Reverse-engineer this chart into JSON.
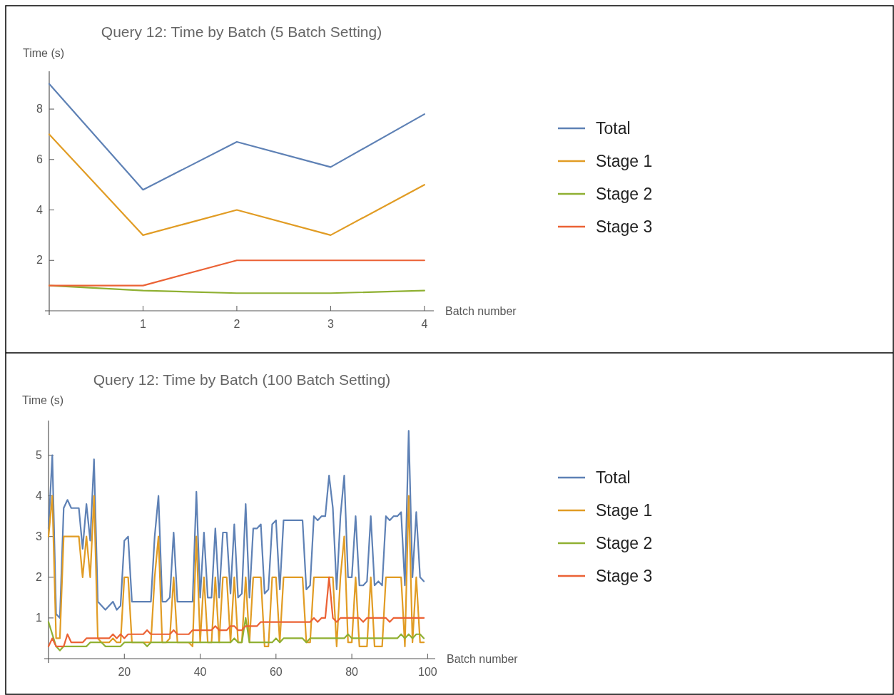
{
  "chart_data": [
    {
      "type": "line",
      "title": "Query 12: Time by Batch (5 Batch Setting)",
      "xlabel": "Batch number",
      "ylabel": "Time (s)",
      "x": [
        0,
        1,
        2,
        3,
        4
      ],
      "xlim": [
        0,
        4.1
      ],
      "ylim": [
        0,
        9.5
      ],
      "xticks": [
        1,
        2,
        3,
        4
      ],
      "yticks": [
        2,
        4,
        6,
        8
      ],
      "legend": "right",
      "grid": false,
      "series": [
        {
          "name": "Total",
          "color": "#5e81b5",
          "values": [
            9,
            4.8,
            6.7,
            5.7,
            7.8
          ]
        },
        {
          "name": "Stage 1",
          "color": "#e19c24",
          "values": [
            7,
            3,
            4,
            3,
            5
          ]
        },
        {
          "name": "Stage 2",
          "color": "#8fb032",
          "values": [
            1,
            0.8,
            0.7,
            0.7,
            0.8
          ]
        },
        {
          "name": "Stage 3",
          "color": "#eb6235",
          "values": [
            1,
            1,
            2,
            2,
            2
          ]
        }
      ]
    },
    {
      "type": "line",
      "title": "Query 12: Time by Batch (100 Batch Setting)",
      "xlabel": "Batch number",
      "ylabel": "Time (s)",
      "x": [
        0,
        1,
        2,
        3,
        4,
        5,
        6,
        7,
        8,
        9,
        10,
        11,
        12,
        13,
        14,
        15,
        16,
        17,
        18,
        19,
        20,
        21,
        22,
        23,
        24,
        25,
        26,
        27,
        28,
        29,
        30,
        31,
        32,
        33,
        34,
        35,
        36,
        37,
        38,
        39,
        40,
        41,
        42,
        43,
        44,
        45,
        46,
        47,
        48,
        49,
        50,
        51,
        52,
        53,
        54,
        55,
        56,
        57,
        58,
        59,
        60,
        61,
        62,
        63,
        64,
        65,
        66,
        67,
        68,
        69,
        70,
        71,
        72,
        73,
        74,
        75,
        76,
        77,
        78,
        79,
        80,
        81,
        82,
        83,
        84,
        85,
        86,
        87,
        88,
        89,
        90,
        91,
        92,
        93,
        94,
        95,
        96,
        97,
        98,
        99
      ],
      "xlim": [
        0,
        102
      ],
      "ylim": [
        0,
        5.85
      ],
      "xticks": [
        20,
        40,
        60,
        80,
        100
      ],
      "yticks": [
        1,
        2,
        3,
        4,
        5
      ],
      "legend": "right",
      "grid": false,
      "series": [
        {
          "name": "Total",
          "color": "#5e81b5",
          "values": [
            3.2,
            5.0,
            1.1,
            1.0,
            3.7,
            3.9,
            3.7,
            3.7,
            3.7,
            2.7,
            3.8,
            2.9,
            4.9,
            1.4,
            1.3,
            1.2,
            1.3,
            1.4,
            1.2,
            1.3,
            2.9,
            3.0,
            1.4,
            1.4,
            1.4,
            1.4,
            1.4,
            1.4,
            3.0,
            4.0,
            1.4,
            1.4,
            1.5,
            3.1,
            1.4,
            1.4,
            1.4,
            1.4,
            1.4,
            4.1,
            1.5,
            3.1,
            1.5,
            1.5,
            3.2,
            1.5,
            3.1,
            3.1,
            1.6,
            3.3,
            1.5,
            1.6,
            3.8,
            1.5,
            3.2,
            3.2,
            3.3,
            1.6,
            1.7,
            3.3,
            3.4,
            1.7,
            3.4,
            3.4,
            3.4,
            3.4,
            3.4,
            3.4,
            1.7,
            1.8,
            3.5,
            3.4,
            3.5,
            3.5,
            4.5,
            3.7,
            1.7,
            3.5,
            4.5,
            2.0,
            2.0,
            3.5,
            1.8,
            1.8,
            1.9,
            3.5,
            1.8,
            1.9,
            1.8,
            3.5,
            3.4,
            3.5,
            3.5,
            3.6,
            1.8,
            5.6,
            2.0,
            3.6,
            2.0,
            1.9
          ]
        },
        {
          "name": "Stage 1",
          "color": "#e19c24",
          "values": [
            3,
            4,
            0.5,
            0.5,
            3,
            3,
            3,
            3,
            3,
            2,
            3,
            2,
            4,
            0.5,
            0.4,
            0.4,
            0.4,
            0.5,
            0.4,
            0.4,
            2,
            2,
            0.4,
            0.4,
            0.4,
            0.4,
            0.4,
            0.4,
            2,
            3,
            0.4,
            0.4,
            0.5,
            2,
            0.4,
            0.4,
            0.4,
            0.4,
            0.3,
            3,
            0.4,
            2,
            0.4,
            0.4,
            2,
            0.4,
            2,
            2,
            0.4,
            2,
            0.4,
            0.4,
            2,
            0.4,
            2,
            2,
            2,
            0.3,
            0.3,
            2,
            2,
            0.4,
            2,
            2,
            2,
            2,
            2,
            2,
            0.4,
            0.4,
            2,
            2,
            2,
            2,
            2,
            2,
            0.3,
            2,
            3,
            0.4,
            0.4,
            2,
            0.3,
            0.3,
            0.3,
            2,
            0.3,
            0.3,
            0.3,
            2,
            2,
            2,
            2,
            2,
            0.3,
            4,
            0.4,
            2,
            0.4,
            0.4
          ]
        },
        {
          "name": "Stage 2",
          "color": "#8fb032",
          "values": [
            0.9,
            0.6,
            0.3,
            0.2,
            0.3,
            0.3,
            0.3,
            0.3,
            0.3,
            0.3,
            0.3,
            0.4,
            0.4,
            0.4,
            0.4,
            0.3,
            0.3,
            0.3,
            0.3,
            0.3,
            0.4,
            0.4,
            0.4,
            0.4,
            0.4,
            0.4,
            0.3,
            0.4,
            0.4,
            0.4,
            0.4,
            0.4,
            0.4,
            0.4,
            0.4,
            0.4,
            0.4,
            0.4,
            0.4,
            0.4,
            0.4,
            0.4,
            0.4,
            0.4,
            0.4,
            0.4,
            0.4,
            0.4,
            0.4,
            0.5,
            0.4,
            0.4,
            1.0,
            0.4,
            0.4,
            0.4,
            0.4,
            0.4,
            0.4,
            0.4,
            0.5,
            0.4,
            0.5,
            0.5,
            0.5,
            0.5,
            0.5,
            0.5,
            0.4,
            0.5,
            0.5,
            0.5,
            0.5,
            0.5,
            0.5,
            0.5,
            0.5,
            0.5,
            0.5,
            0.6,
            0.5,
            0.5,
            0.5,
            0.5,
            0.5,
            0.5,
            0.5,
            0.5,
            0.5,
            0.5,
            0.5,
            0.5,
            0.5,
            0.6,
            0.5,
            0.6,
            0.5,
            0.6,
            0.6,
            0.5
          ]
        },
        {
          "name": "Stage 3",
          "color": "#eb6235",
          "values": [
            0.3,
            0.5,
            0.3,
            0.3,
            0.3,
            0.6,
            0.4,
            0.4,
            0.4,
            0.4,
            0.5,
            0.5,
            0.5,
            0.5,
            0.5,
            0.5,
            0.5,
            0.6,
            0.5,
            0.6,
            0.5,
            0.6,
            0.6,
            0.6,
            0.6,
            0.6,
            0.7,
            0.6,
            0.6,
            0.6,
            0.6,
            0.6,
            0.6,
            0.7,
            0.6,
            0.6,
            0.6,
            0.6,
            0.7,
            0.7,
            0.7,
            0.7,
            0.7,
            0.7,
            0.8,
            0.7,
            0.7,
            0.7,
            0.8,
            0.8,
            0.7,
            0.7,
            0.8,
            0.8,
            0.8,
            0.8,
            0.9,
            0.9,
            0.9,
            0.9,
            0.9,
            0.9,
            0.9,
            0.9,
            0.9,
            0.9,
            0.9,
            0.9,
            0.9,
            0.9,
            1.0,
            0.9,
            1.0,
            1.0,
            2.0,
            1.0,
            0.9,
            1.0,
            1.0,
            1.0,
            1.0,
            1.0,
            1.0,
            0.9,
            1.0,
            1.0,
            1.0,
            1.0,
            1.0,
            1.0,
            0.9,
            1.0,
            1.0,
            1.0,
            1.0,
            1.0,
            1.0,
            1.0,
            1.0,
            1.0
          ]
        }
      ]
    }
  ]
}
